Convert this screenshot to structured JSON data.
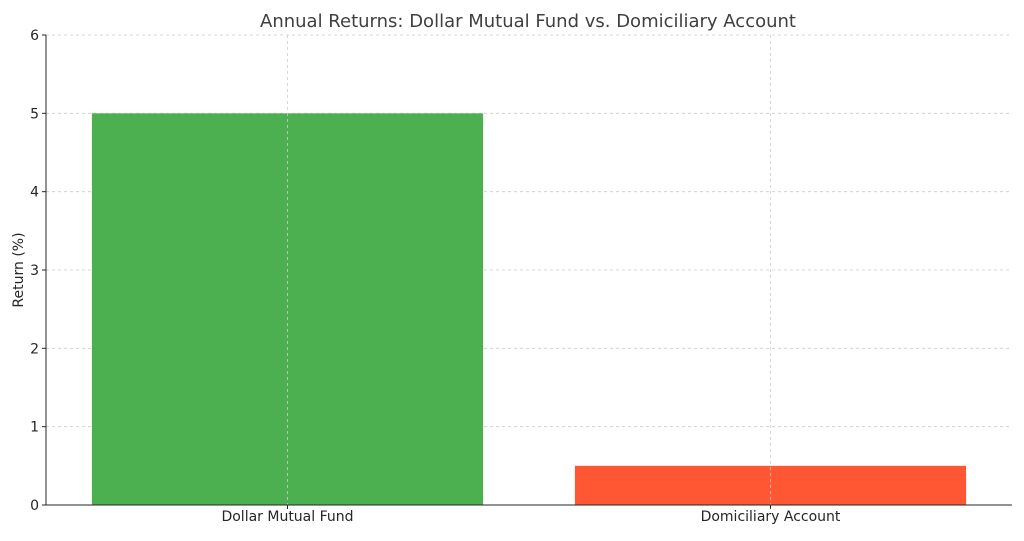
{
  "chart_data": {
    "type": "bar",
    "title": "Annual Returns: Dollar Mutual Fund vs. Domiciliary Account",
    "xlabel": "",
    "ylabel": "Return (%)",
    "categories": [
      "Dollar Mutual Fund",
      "Domiciliary Account"
    ],
    "values": [
      5,
      0.5
    ],
    "colors": [
      "#4caf50",
      "#ff5733"
    ],
    "ylim": [
      0,
      6
    ],
    "yticks": [
      "0",
      "1",
      "2",
      "3",
      "4",
      "5",
      "6"
    ],
    "grid": true,
    "legend": "none"
  }
}
